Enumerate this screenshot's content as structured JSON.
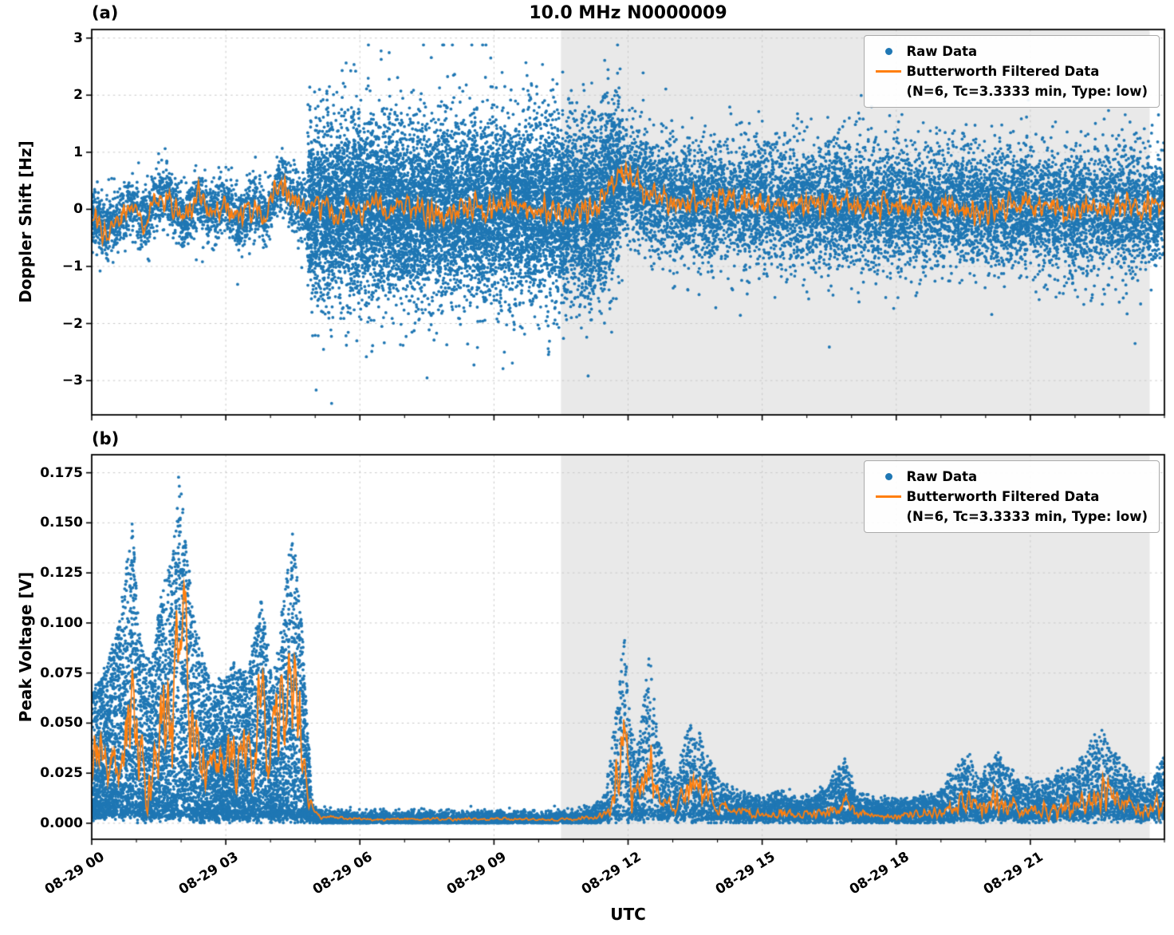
{
  "style": {
    "raw_color": "#1f77b4",
    "filtered_color": "#ff7f0e",
    "shading_color": "#e9e9e9",
    "grid_color": "#c9c9c9",
    "axis_color": "#000000",
    "background": "#ffffff"
  },
  "chart_data": [
    {
      "type": "scatter",
      "panel": "(a)",
      "title": "10.0 MHz N0000009",
      "xlabel": "UTC",
      "ylabel": "Doppler Shift [Hz]",
      "x_unit": "hours after 08-29 00:00 UTC",
      "xlim": [
        0,
        24
      ],
      "ylim": [
        -3.6,
        3.15
      ],
      "grid": true,
      "legend_position": "upper right",
      "shaded_region_hours": [
        10.5,
        23.67
      ],
      "xticks": {
        "hours": [
          0,
          3,
          6,
          9,
          12,
          15,
          18,
          21
        ],
        "labels": [
          "08-29 00",
          "08-29 03",
          "08-29 06",
          "08-29 09",
          "08-29 12",
          "08-29 15",
          "08-29 18",
          "08-29 21"
        ]
      },
      "yticks": {
        "values": [
          3,
          2,
          1,
          0,
          -1,
          -2,
          -3
        ],
        "labels": [
          "3",
          "2",
          "1",
          "0",
          "−1",
          "−2",
          "−3"
        ]
      },
      "minor_tick_hours": 1,
      "series": [
        {
          "name": "Raw Data",
          "kind": "scatter",
          "color": "#1f77b4",
          "segments": [
            {
              "t_start": 0,
              "t_end": 4.83,
              "n_points": 2400,
              "y_std": 0.27,
              "outlier_fraction": 0.006,
              "outlier_scale": 2.6
            },
            {
              "t_start": 4.83,
              "t_end": 11.83,
              "n_points": 11000,
              "y_std": 0.78,
              "outlier_fraction": 0.015,
              "outlier_scale": 1.8
            },
            {
              "t_start": 11.83,
              "t_end": 24,
              "n_points": 9800,
              "y_std": 0.52,
              "outlier_fraction": 0.012,
              "outlier_scale": 1.8
            }
          ]
        },
        {
          "name": "Butterworth Filtered Data",
          "detail": "(N=6, Tc=3.3333 min, Type: low)",
          "kind": "line",
          "color": "#ff7f0e",
          "noise_amp": 0.22,
          "keypoints": [
            [
              0,
              -0.1
            ],
            [
              0.3,
              -0.35
            ],
            [
              0.6,
              -0.15
            ],
            [
              0.9,
              0.05
            ],
            [
              1.2,
              -0.2
            ],
            [
              1.5,
              0.3
            ],
            [
              1.8,
              0.1
            ],
            [
              2.1,
              -0.15
            ],
            [
              2.4,
              0.2
            ],
            [
              2.7,
              -0.1
            ],
            [
              3,
              0.15
            ],
            [
              3.3,
              -0.2
            ],
            [
              3.6,
              0.05
            ],
            [
              3.9,
              -0.15
            ],
            [
              4.2,
              0.45
            ],
            [
              4.5,
              0.2
            ],
            [
              4.83,
              -0.05
            ],
            [
              5.5,
              0
            ],
            [
              6.5,
              0.05
            ],
            [
              7.5,
              -0.05
            ],
            [
              8.5,
              0
            ],
            [
              9.5,
              0.05
            ],
            [
              10.5,
              -0.05
            ],
            [
              11.3,
              0
            ],
            [
              11.85,
              0.6
            ],
            [
              12.1,
              0.45
            ],
            [
              12.5,
              0.25
            ],
            [
              13,
              0.15
            ],
            [
              14,
              0.1
            ],
            [
              15,
              0.12
            ],
            [
              16,
              0.05
            ],
            [
              17,
              0.1
            ],
            [
              18,
              0.02
            ],
            [
              19,
              0.05
            ],
            [
              20,
              0
            ],
            [
              21,
              0.05
            ],
            [
              22,
              -0.03
            ],
            [
              23,
              0
            ],
            [
              24,
              0.05
            ]
          ]
        }
      ]
    },
    {
      "type": "scatter",
      "panel": "(b)",
      "title": "10.0 MHz N0000009",
      "xlabel": "UTC",
      "ylabel": "Peak Voltage [V]",
      "x_unit": "hours after 08-29 00:00 UTC",
      "xlim": [
        0,
        24
      ],
      "ylim": [
        -0.008,
        0.184
      ],
      "grid": true,
      "legend_position": "upper right",
      "shaded_region_hours": [
        10.5,
        23.67
      ],
      "xticks": {
        "hours": [
          0,
          3,
          6,
          9,
          12,
          15,
          18,
          21
        ],
        "labels": [
          "08-29 00",
          "08-29 03",
          "08-29 06",
          "08-29 09",
          "08-29 12",
          "08-29 15",
          "08-29 18",
          "08-29 21"
        ]
      },
      "yticks": {
        "values": [
          0.175,
          0.15,
          0.125,
          0.1,
          0.075,
          0.05,
          0.025,
          0
        ],
        "labels": [
          "0.175",
          "0.150",
          "0.125",
          "0.100",
          "0.075",
          "0.050",
          "0.025",
          "0.000"
        ]
      },
      "minor_tick_hours": 1,
      "series": [
        {
          "name": "Raw Data",
          "kind": "scatter",
          "color": "#1f77b4",
          "n_points": 18000,
          "bias": 1.7,
          "jitter": 0.0015,
          "time_weights": [
            {
              "t0": 0,
              "t1": 4.9,
              "w": 0.42
            },
            {
              "t0": 4.9,
              "t1": 11.7,
              "w": 0.18
            },
            {
              "t0": 11.7,
              "t1": 24,
              "w": 0.4
            }
          ],
          "envelope": [
            [
              0,
              0.004,
              0.065
            ],
            [
              0.3,
              0.004,
              0.075
            ],
            [
              0.6,
              0.004,
              0.1
            ],
            [
              0.9,
              0.004,
              0.15
            ],
            [
              1.1,
              0.004,
              0.09
            ],
            [
              1.35,
              0.003,
              0.08
            ],
            [
              1.6,
              0.004,
              0.12
            ],
            [
              1.8,
              0.004,
              0.13
            ],
            [
              1.95,
              0.004,
              0.176
            ],
            [
              2.1,
              0.004,
              0.145
            ],
            [
              2.3,
              0.003,
              0.1
            ],
            [
              2.6,
              0.003,
              0.075
            ],
            [
              2.9,
              0.003,
              0.07
            ],
            [
              3.2,
              0.003,
              0.08
            ],
            [
              3.5,
              0.003,
              0.075
            ],
            [
              3.8,
              0.003,
              0.112
            ],
            [
              4.05,
              0.003,
              0.07
            ],
            [
              4.3,
              0.003,
              0.112
            ],
            [
              4.5,
              0.003,
              0.15
            ],
            [
              4.7,
              0.003,
              0.1
            ],
            [
              4.85,
              0.002,
              0.04
            ],
            [
              4.95,
              0.001,
              0.008
            ],
            [
              5.3,
              0.001,
              0.005
            ],
            [
              6,
              0.001,
              0.004
            ],
            [
              7,
              0.001,
              0.004
            ],
            [
              8,
              0.001,
              0.004
            ],
            [
              9,
              0.001,
              0.004
            ],
            [
              10,
              0.001,
              0.004
            ],
            [
              10.7,
              0.001,
              0.005
            ],
            [
              11.2,
              0.001,
              0.007
            ],
            [
              11.5,
              0.002,
              0.015
            ],
            [
              11.75,
              0.002,
              0.06
            ],
            [
              11.9,
              0.003,
              0.101
            ],
            [
              12.05,
              0.003,
              0.05
            ],
            [
              12.2,
              0.003,
              0.035
            ],
            [
              12.35,
              0.003,
              0.06
            ],
            [
              12.5,
              0.003,
              0.09
            ],
            [
              12.65,
              0.003,
              0.045
            ],
            [
              12.85,
              0.003,
              0.028
            ],
            [
              13.1,
              0.003,
              0.022
            ],
            [
              13.35,
              0.003,
              0.05
            ],
            [
              13.6,
              0.003,
              0.045
            ],
            [
              13.85,
              0.003,
              0.03
            ],
            [
              14.1,
              0.002,
              0.02
            ],
            [
              14.5,
              0.002,
              0.014
            ],
            [
              15,
              0.002,
              0.012
            ],
            [
              15.4,
              0.002,
              0.016
            ],
            [
              15.8,
              0.002,
              0.012
            ],
            [
              16.2,
              0.002,
              0.013
            ],
            [
              16.6,
              0.002,
              0.022
            ],
            [
              16.85,
              0.002,
              0.032
            ],
            [
              17.1,
              0.002,
              0.015
            ],
            [
              17.5,
              0.002,
              0.011
            ],
            [
              18,
              0.002,
              0.011
            ],
            [
              18.4,
              0.002,
              0.013
            ],
            [
              18.9,
              0.002,
              0.014
            ],
            [
              19.3,
              0.002,
              0.025
            ],
            [
              19.6,
              0.003,
              0.035
            ],
            [
              19.9,
              0.002,
              0.022
            ],
            [
              20.2,
              0.003,
              0.035
            ],
            [
              20.5,
              0.003,
              0.028
            ],
            [
              20.8,
              0.002,
              0.02
            ],
            [
              21.2,
              0.002,
              0.02
            ],
            [
              21.6,
              0.003,
              0.024
            ],
            [
              22,
              0.003,
              0.028
            ],
            [
              22.4,
              0.003,
              0.04
            ],
            [
              22.6,
              0.004,
              0.045
            ],
            [
              22.9,
              0.003,
              0.035
            ],
            [
              23.3,
              0.003,
              0.022
            ],
            [
              23.7,
              0.003,
              0.02
            ],
            [
              24,
              0.003,
              0.035
            ]
          ]
        },
        {
          "name": "Butterworth Filtered Data",
          "detail": "(N=6, Tc=3.3333 min, Type: low)",
          "kind": "line",
          "color": "#ff7f0e",
          "noise_rel": 0.2,
          "keypoints": [
            [
              0,
              0.025
            ],
            [
              0.2,
              0.04
            ],
            [
              0.4,
              0.02
            ],
            [
              0.6,
              0.035
            ],
            [
              0.8,
              0.045
            ],
            [
              0.95,
              0.06
            ],
            [
              1.1,
              0.03
            ],
            [
              1.25,
              0.012
            ],
            [
              1.4,
              0.035
            ],
            [
              1.6,
              0.045
            ],
            [
              1.8,
              0.05
            ],
            [
              1.95,
              0.105
            ],
            [
              2.05,
              0.113
            ],
            [
              2.2,
              0.05
            ],
            [
              2.4,
              0.03
            ],
            [
              2.6,
              0.04
            ],
            [
              2.8,
              0.025
            ],
            [
              3,
              0.04
            ],
            [
              3.2,
              0.03
            ],
            [
              3.4,
              0.045
            ],
            [
              3.6,
              0.025
            ],
            [
              3.8,
              0.06
            ],
            [
              3.95,
              0.03
            ],
            [
              4.1,
              0.05
            ],
            [
              4.3,
              0.06
            ],
            [
              4.45,
              0.086
            ],
            [
              4.6,
              0.05
            ],
            [
              4.75,
              0.04
            ],
            [
              4.85,
              0.015
            ],
            [
              5,
              0.004
            ],
            [
              5.5,
              0.003
            ],
            [
              6,
              0.002
            ],
            [
              7,
              0.002
            ],
            [
              8,
              0.002
            ],
            [
              9,
              0.002
            ],
            [
              10,
              0.002
            ],
            [
              10.8,
              0.002
            ],
            [
              11.3,
              0.003
            ],
            [
              11.6,
              0.006
            ],
            [
              11.8,
              0.03
            ],
            [
              11.9,
              0.05
            ],
            [
              12,
              0.025
            ],
            [
              12.15,
              0.012
            ],
            [
              12.3,
              0.02
            ],
            [
              12.45,
              0.032
            ],
            [
              12.6,
              0.02
            ],
            [
              12.8,
              0.01
            ],
            [
              13,
              0.008
            ],
            [
              13.2,
              0.012
            ],
            [
              13.4,
              0.02
            ],
            [
              13.6,
              0.018
            ],
            [
              13.8,
              0.012
            ],
            [
              14,
              0.008
            ],
            [
              14.4,
              0.006
            ],
            [
              14.8,
              0.005
            ],
            [
              15.2,
              0.005
            ],
            [
              15.6,
              0.005
            ],
            [
              16,
              0.004
            ],
            [
              16.4,
              0.005
            ],
            [
              16.7,
              0.009
            ],
            [
              16.9,
              0.012
            ],
            [
              17.1,
              0.006
            ],
            [
              17.5,
              0.004
            ],
            [
              18,
              0.004
            ],
            [
              18.5,
              0.004
            ],
            [
              19,
              0.005
            ],
            [
              19.3,
              0.008
            ],
            [
              19.6,
              0.012
            ],
            [
              19.9,
              0.008
            ],
            [
              20.2,
              0.012
            ],
            [
              20.5,
              0.009
            ],
            [
              20.8,
              0.006
            ],
            [
              21.2,
              0.006
            ],
            [
              21.6,
              0.007
            ],
            [
              22,
              0.008
            ],
            [
              22.3,
              0.012
            ],
            [
              22.6,
              0.016
            ],
            [
              22.9,
              0.012
            ],
            [
              23.2,
              0.008
            ],
            [
              23.6,
              0.006
            ],
            [
              23.8,
              0.01
            ],
            [
              24,
              0.008
            ]
          ]
        }
      ]
    }
  ]
}
